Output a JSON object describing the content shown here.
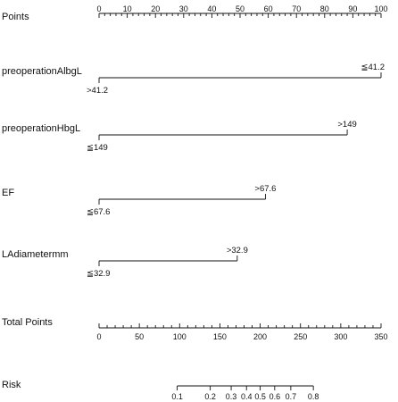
{
  "chart_data": {
    "type": "nomogram",
    "rows": [
      {
        "label": "Points",
        "kind": "axis",
        "min": 0,
        "max": 100,
        "major_ticks": [
          0,
          10,
          20,
          30,
          40,
          50,
          60,
          70,
          80,
          90,
          100
        ],
        "minor_step": 2
      },
      {
        "label": "preoperationAlbgL",
        "kind": "variable",
        "levels": [
          {
            "label": ">41.2",
            "points": 0
          },
          {
            "label": "≦41.2",
            "points": 100
          }
        ]
      },
      {
        "label": "preoperationHbgL",
        "kind": "variable",
        "levels": [
          {
            "label": "≦149",
            "points": 0
          },
          {
            "label": ">149",
            "points": 88
          }
        ]
      },
      {
        "label": "EF",
        "kind": "variable",
        "levels": [
          {
            "label": "≦67.6",
            "points": 0
          },
          {
            "label": ">67.6",
            "points": 59
          }
        ]
      },
      {
        "label": "LAdiametermm",
        "kind": "variable",
        "levels": [
          {
            "label": "≦32.9",
            "points": 0
          },
          {
            "label": ">32.9",
            "points": 49
          }
        ]
      },
      {
        "label": "Total Points",
        "kind": "axis",
        "min": 0,
        "max": 350,
        "major_ticks": [
          0,
          50,
          100,
          150,
          200,
          250,
          300,
          350
        ],
        "minor_step": 10
      },
      {
        "label": "Risk",
        "kind": "risk",
        "ticks": [
          {
            "label": "0.1",
            "total_points": 97
          },
          {
            "label": "0.2",
            "total_points": 138
          },
          {
            "label": "0.3",
            "total_points": 164
          },
          {
            "label": "0.4",
            "total_points": 183
          },
          {
            "label": "0.5",
            "total_points": 200
          },
          {
            "label": "0.6",
            "total_points": 218
          },
          {
            "label": "0.7",
            "total_points": 238
          },
          {
            "label": "0.8",
            "total_points": 266
          }
        ]
      }
    ]
  }
}
